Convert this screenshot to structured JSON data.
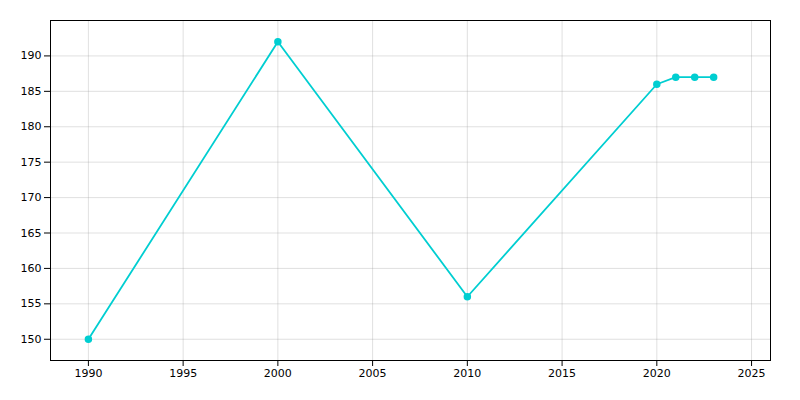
{
  "chart_data": {
    "type": "line",
    "x": [
      1990,
      2000,
      2010,
      2020,
      2021,
      2022,
      2023
    ],
    "values": [
      150,
      192,
      156,
      186,
      187,
      187,
      187
    ],
    "color": "#00CED1",
    "marker": "circle",
    "xlim": [
      1988,
      2026
    ],
    "ylim": [
      147,
      195
    ],
    "xticks": [
      1990,
      1995,
      2000,
      2005,
      2010,
      2015,
      2020,
      2025
    ],
    "yticks": [
      150,
      155,
      160,
      165,
      170,
      175,
      180,
      185,
      190
    ],
    "grid": true
  }
}
